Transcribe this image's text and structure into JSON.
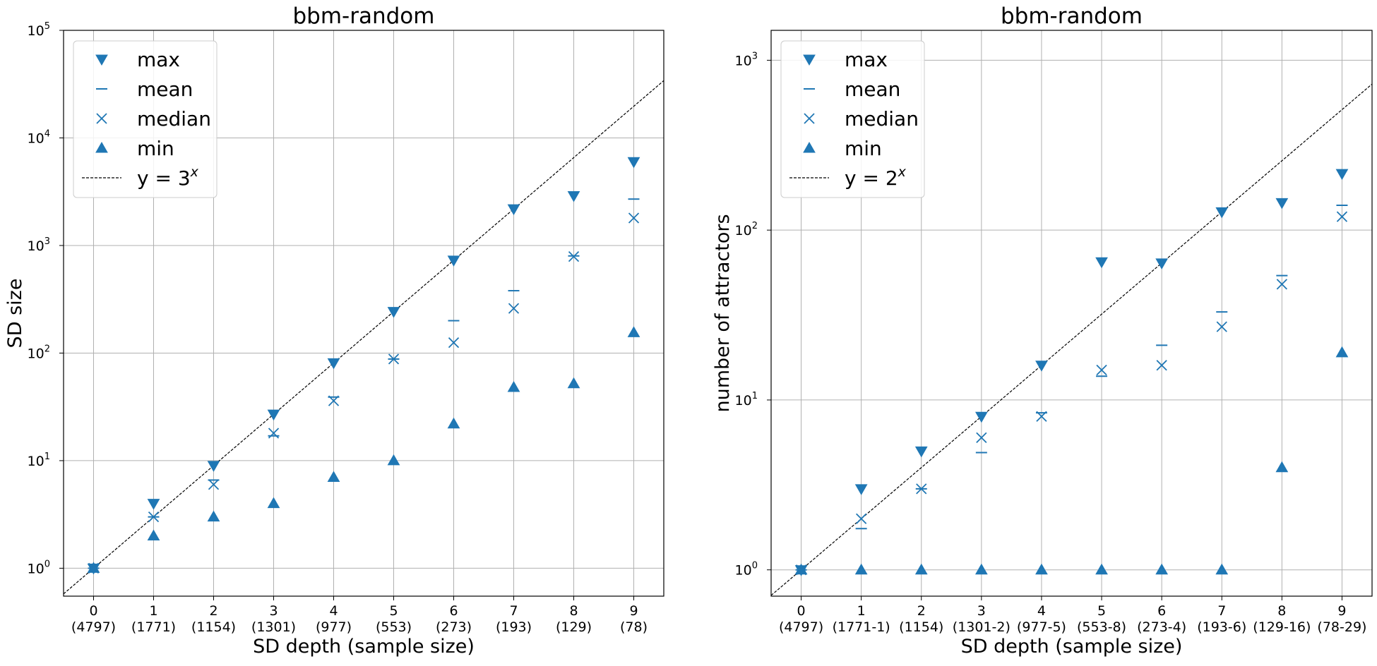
{
  "colors": {
    "marker": "#1f77b4",
    "grid": "#b0b0b0",
    "reference_line": "#000000",
    "axes": "#000000"
  },
  "legend_labels": {
    "max": "max",
    "mean": "mean",
    "median": "median",
    "min": "min"
  },
  "chart_data": [
    {
      "type": "scatter",
      "title": "bbm-random",
      "xlabel": "SD depth (sample size)",
      "ylabel": "SD size",
      "yscale": "log",
      "ylim": [
        0.55,
        100000
      ],
      "y_ticks": [
        1,
        10,
        100,
        1000,
        10000,
        100000
      ],
      "y_tick_bases": [
        "10",
        "10",
        "10",
        "10",
        "10",
        "10"
      ],
      "y_tick_exps": [
        "0",
        "1",
        "2",
        "3",
        "4",
        "5"
      ],
      "x": [
        0,
        1,
        2,
        3,
        4,
        5,
        6,
        7,
        8,
        9
      ],
      "x_tick_labels": [
        "0",
        "1",
        "2",
        "3",
        "4",
        "5",
        "6",
        "7",
        "8",
        "9"
      ],
      "x_tick_sublabels": [
        "(4797)",
        "(1771)",
        "(1154)",
        "(1301)",
        "(977)",
        "(553)",
        "(273)",
        "(193)",
        "(129)",
        "(78)"
      ],
      "series": [
        {
          "name": "max",
          "marker": "triangle-down",
          "values": [
            1,
            4,
            9,
            27,
            81,
            243,
            729,
            2187,
            2900,
            6000
          ]
        },
        {
          "name": "mean",
          "marker": "hline",
          "values": [
            1,
            3,
            6.6,
            17,
            39,
            88,
            200,
            380,
            800,
            2700
          ]
        },
        {
          "name": "median",
          "marker": "x",
          "values": [
            1,
            3,
            6,
            18,
            36,
            88,
            125,
            260,
            790,
            1800
          ]
        },
        {
          "name": "min",
          "marker": "triangle-up",
          "values": [
            1,
            2,
            3,
            4,
            7,
            10,
            22,
            48,
            52,
            155
          ]
        }
      ],
      "reference_line": {
        "label": "y = 3",
        "label_exponent": "x",
        "base": 3
      },
      "legend_position": "upper left",
      "grid": true
    },
    {
      "type": "scatter",
      "title": "bbm-random",
      "xlabel": "SD depth (sample size)",
      "ylabel": "number of attractors",
      "yscale": "log",
      "ylim": [
        0.7,
        1500
      ],
      "y_ticks": [
        1,
        10,
        100,
        1000
      ],
      "y_tick_bases": [
        "10",
        "10",
        "10",
        "10"
      ],
      "y_tick_exps": [
        "0",
        "1",
        "2",
        "3"
      ],
      "x": [
        0,
        1,
        2,
        3,
        4,
        5,
        6,
        7,
        8,
        9
      ],
      "x_tick_labels": [
        "0",
        "1",
        "2",
        "3",
        "4",
        "5",
        "6",
        "7",
        "8",
        "9"
      ],
      "x_tick_sublabels": [
        "(4797)",
        "(1771-1)",
        "(1154)",
        "(1301-2)",
        "(977-5)",
        "(553-8)",
        "(273-4)",
        "(193-6)",
        "(129-16)",
        "(78-29)"
      ],
      "series": [
        {
          "name": "max",
          "marker": "triangle-down",
          "values": [
            1,
            3,
            5,
            8,
            16,
            65,
            64,
            128,
            145,
            215
          ]
        },
        {
          "name": "mean",
          "marker": "hline",
          "values": [
            1,
            1.75,
            3,
            4.9,
            8.4,
            13.8,
            21,
            33,
            54,
            140
          ]
        },
        {
          "name": "median",
          "marker": "x",
          "values": [
            1,
            2,
            3,
            6,
            8,
            15,
            16,
            27,
            48,
            120
          ]
        },
        {
          "name": "min",
          "marker": "triangle-up",
          "values": [
            1,
            1,
            1,
            1,
            1,
            1,
            1,
            1,
            4,
            19
          ]
        }
      ],
      "reference_line": {
        "label": "y = 2",
        "label_exponent": "x",
        "base": 2
      },
      "legend_position": "upper left",
      "grid": true
    }
  ]
}
